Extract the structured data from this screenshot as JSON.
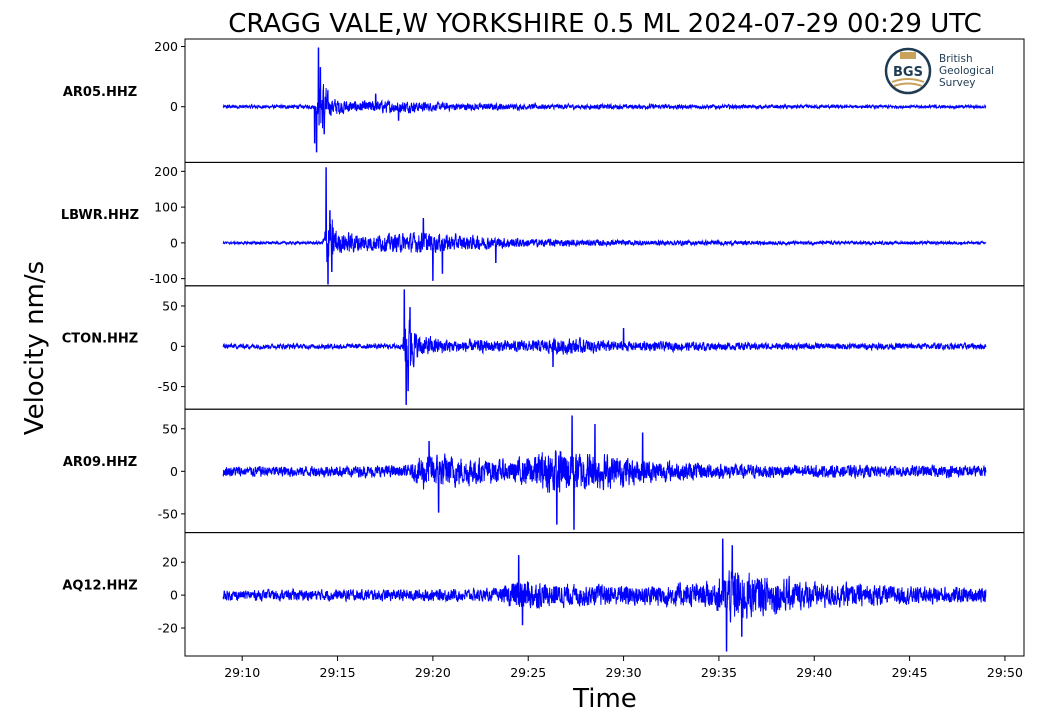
{
  "title": "CRAGG VALE,W YORKSHIRE 0.5 ML   2024-07-29 00:29 UTC",
  "logo": {
    "emblem_text": "BGS",
    "lines": [
      "British",
      "Geological",
      "Survey"
    ],
    "color": "#1f3b52",
    "accent": "#c8a25a"
  },
  "trace_color": "#0000ff",
  "chart_data": {
    "type": "line",
    "title": "CRAGG VALE,W YORKSHIRE 0.5 ML   2024-07-29 00:29 UTC",
    "xlabel": "Time",
    "ylabel": "Velocity nm/s",
    "x_unit": "minute:second after 00:00 UTC",
    "xlim": [
      "29:07.0",
      "29:51.0"
    ],
    "xticks": [
      "29:10",
      "29:15",
      "29:20",
      "29:25",
      "29:30",
      "29:35",
      "29:40",
      "29:45",
      "29:50"
    ],
    "trace_span": [
      "29:09.0",
      "29:49.0"
    ],
    "grid": false,
    "legend": "none",
    "panels": [
      {
        "station": "AR05.HHZ",
        "ylim": [
          -185,
          225
        ],
        "yticks": [
          0,
          200
        ],
        "ytick_labels": [
          "0",
          "200"
        ],
        "noise_amplitude": 5,
        "envelope_points": [
          [
            "29:09.0",
            7
          ],
          [
            "29:13.9",
            8
          ],
          [
            "29:14.1",
            150
          ],
          [
            "29:14.6",
            40
          ],
          [
            "29:16.0",
            22
          ],
          [
            "29:18.0",
            28
          ],
          [
            "29:20.0",
            18
          ],
          [
            "29:25.0",
            12
          ],
          [
            "29:30.0",
            10
          ],
          [
            "29:40.0",
            7
          ],
          [
            "29:49.0",
            6
          ]
        ],
        "peaks": [
          [
            "29:13.8",
            -120
          ],
          [
            "29:13.9",
            -150
          ],
          [
            "29:14.0",
            195
          ],
          [
            "29:14.1",
            130
          ],
          [
            "29:14.3",
            -90
          ],
          [
            "29:17.0",
            42
          ],
          [
            "29:18.2",
            -45
          ]
        ]
      },
      {
        "station": "LBWR.HHZ",
        "ylim": [
          -120,
          225
        ],
        "yticks": [
          -100,
          0,
          100,
          200
        ],
        "ytick_labels": [
          "-100",
          "0",
          "100",
          "200"
        ],
        "noise_amplitude": 3,
        "envelope_points": [
          [
            "29:09.0",
            4
          ],
          [
            "29:14.2",
            5
          ],
          [
            "29:14.5",
            110
          ],
          [
            "29:15.0",
            40
          ],
          [
            "29:17.0",
            30
          ],
          [
            "29:19.5",
            38
          ],
          [
            "29:21.0",
            30
          ],
          [
            "29:25.0",
            15
          ],
          [
            "29:30.0",
            10
          ],
          [
            "29:40.0",
            6
          ],
          [
            "29:49.0",
            5
          ]
        ],
        "peaks": [
          [
            "29:14.4",
            210
          ],
          [
            "29:14.5",
            -115
          ],
          [
            "29:14.6",
            90
          ],
          [
            "29:14.7",
            -80
          ],
          [
            "29:19.5",
            68
          ],
          [
            "29:20.0",
            -105
          ],
          [
            "29:20.5",
            -85
          ],
          [
            "29:23.3",
            -55
          ]
        ]
      },
      {
        "station": "CTON.HHZ",
        "ylim": [
          -78,
          75
        ],
        "yticks": [
          -50,
          0,
          50
        ],
        "ytick_labels": [
          "-50",
          "0",
          "50"
        ],
        "noise_amplitude": 3,
        "envelope_points": [
          [
            "29:09.0",
            4
          ],
          [
            "29:18.4",
            4
          ],
          [
            "29:18.6",
            55
          ],
          [
            "29:19.2",
            18
          ],
          [
            "29:21.0",
            10
          ],
          [
            "29:25.0",
            9
          ],
          [
            "29:27.0",
            13
          ],
          [
            "29:30.0",
            8
          ],
          [
            "29:40.0",
            5
          ],
          [
            "29:49.0",
            5
          ]
        ],
        "peaks": [
          [
            "29:18.5",
            70
          ],
          [
            "29:18.6",
            -72
          ],
          [
            "29:18.7",
            -55
          ],
          [
            "29:18.8",
            48
          ],
          [
            "29:26.3",
            -25
          ],
          [
            "29:30.0",
            22
          ]
        ]
      },
      {
        "station": "AR09.HHZ",
        "ylim": [
          -72,
          73
        ],
        "yticks": [
          -50,
          0,
          50
        ],
        "ytick_labels": [
          "-50",
          "0",
          "50"
        ],
        "noise_amplitude": 6,
        "envelope_points": [
          [
            "29:09.0",
            8
          ],
          [
            "29:18.8",
            9
          ],
          [
            "29:19.5",
            28
          ],
          [
            "29:21.5",
            22
          ],
          [
            "29:24.0",
            16
          ],
          [
            "29:26.5",
            35
          ],
          [
            "29:28.0",
            30
          ],
          [
            "29:31.0",
            18
          ],
          [
            "29:35.0",
            11
          ],
          [
            "29:40.0",
            9
          ],
          [
            "29:49.0",
            9
          ]
        ],
        "peaks": [
          [
            "29:19.8",
            35
          ],
          [
            "29:20.3",
            -48
          ],
          [
            "29:26.5",
            -62
          ],
          [
            "29:27.3",
            65
          ],
          [
            "29:27.4",
            -68
          ],
          [
            "29:28.5",
            55
          ],
          [
            "29:31.0",
            45
          ]
        ]
      },
      {
        "station": "AQ12.HHZ",
        "ylim": [
          -37,
          38
        ],
        "yticks": [
          -20,
          0,
          20
        ],
        "ytick_labels": [
          "-20",
          "0",
          "20"
        ],
        "noise_amplitude": 3,
        "envelope_points": [
          [
            "29:09.0",
            4
          ],
          [
            "29:23.5",
            5
          ],
          [
            "29:24.5",
            14
          ],
          [
            "29:26.0",
            9
          ],
          [
            "29:30.0",
            8
          ],
          [
            "29:34.8",
            10
          ],
          [
            "29:35.5",
            24
          ],
          [
            "29:37.0",
            16
          ],
          [
            "29:40.0",
            10
          ],
          [
            "29:45.0",
            7
          ],
          [
            "29:49.0",
            6
          ]
        ],
        "peaks": [
          [
            "29:24.5",
            24
          ],
          [
            "29:24.7",
            -18
          ],
          [
            "29:35.2",
            34
          ],
          [
            "29:35.4",
            -34
          ],
          [
            "29:35.7",
            30
          ],
          [
            "29:36.2",
            -25
          ]
        ]
      }
    ]
  }
}
